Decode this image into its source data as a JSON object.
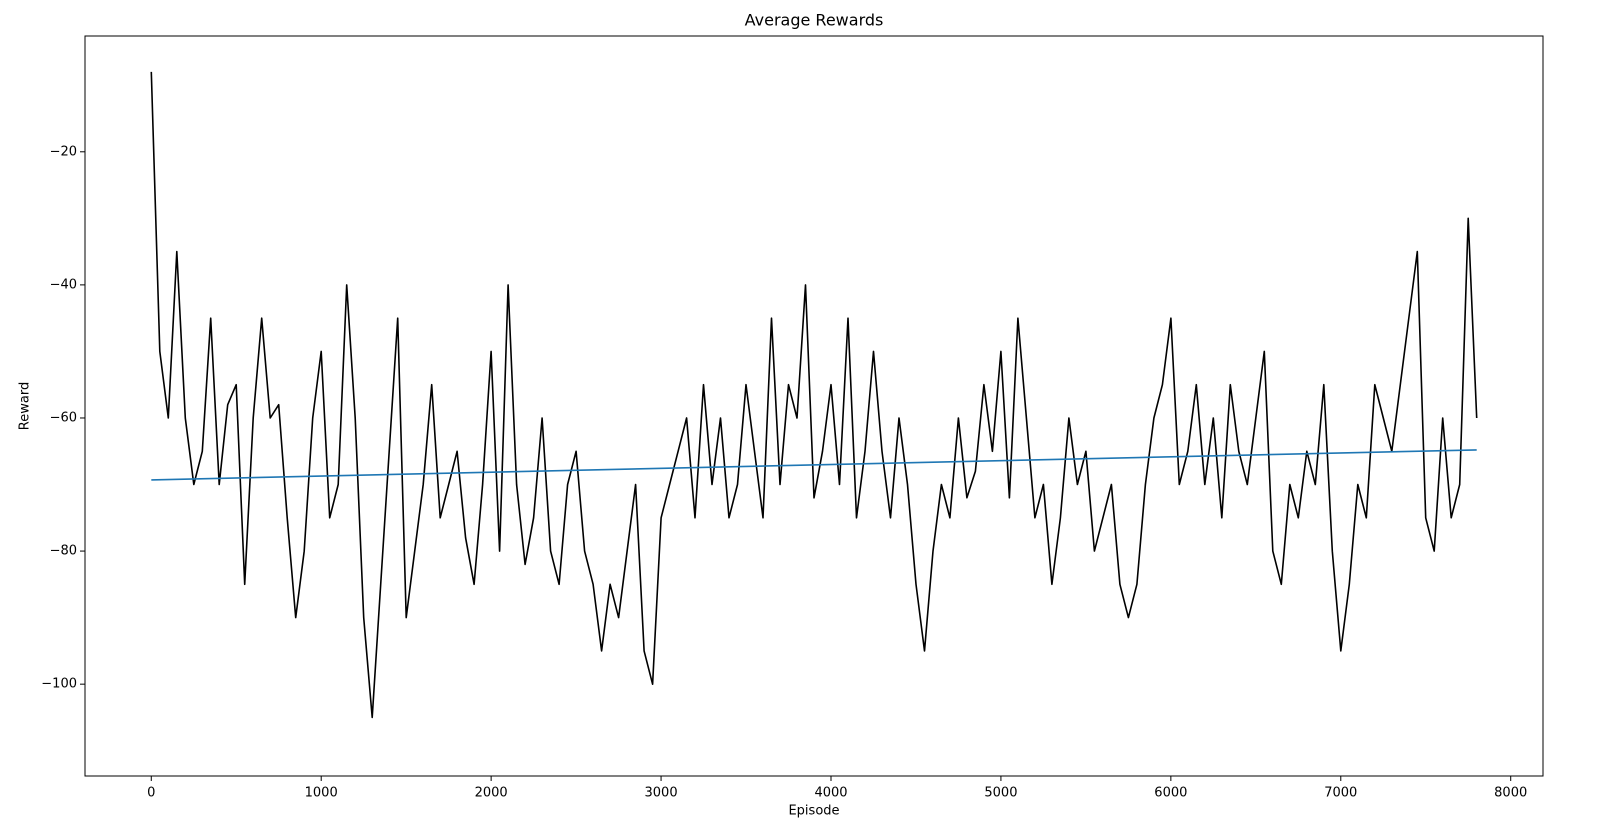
{
  "chart_data": {
    "type": "line",
    "title": "Average Rewards",
    "x_label": "Episode",
    "y_label": "Reward",
    "xlim": [
      -390,
      8190
    ],
    "ylim": [
      -113.8,
      -2.6
    ],
    "xticks": [
      0,
      1000,
      2000,
      3000,
      4000,
      5000,
      6000,
      7000,
      8000
    ],
    "yticks": [
      {
        "value": -100,
        "label": "−100"
      },
      {
        "value": -80,
        "label": "−80"
      },
      {
        "value": -60,
        "label": "−60"
      },
      {
        "value": -40,
        "label": "−40"
      },
      {
        "value": -20,
        "label": "−20"
      }
    ],
    "grid": false,
    "series": [
      {
        "color": "#000000",
        "x": [
          0,
          50,
          100,
          150,
          200,
          250,
          300,
          350,
          400,
          450,
          500,
          550,
          600,
          650,
          700,
          750,
          800,
          850,
          900,
          950,
          1000,
          1050,
          1100,
          1150,
          1200,
          1250,
          1300,
          1350,
          1400,
          1450,
          1500,
          1550,
          1600,
          1650,
          1700,
          1750,
          1800,
          1850,
          1900,
          1950,
          2000,
          2050,
          2100,
          2150,
          2200,
          2250,
          2300,
          2350,
          2400,
          2450,
          2500,
          2550,
          2600,
          2650,
          2700,
          2750,
          2800,
          2850,
          2900,
          2950,
          3000,
          3050,
          3100,
          3150,
          3200,
          3250,
          3300,
          3350,
          3400,
          3450,
          3500,
          3550,
          3600,
          3650,
          3700,
          3750,
          3800,
          3850,
          3900,
          3950,
          4000,
          4050,
          4100,
          4150,
          4200,
          4250,
          4300,
          4350,
          4400,
          4450,
          4500,
          4550,
          4600,
          4650,
          4700,
          4750,
          4800,
          4850,
          4900,
          4950,
          5000,
          5050,
          5100,
          5150,
          5200,
          5250,
          5300,
          5350,
          5400,
          5450,
          5500,
          5550,
          5600,
          5650,
          5700,
          5750,
          5800,
          5850,
          5900,
          5950,
          6000,
          6050,
          6100,
          6150,
          6200,
          6250,
          6300,
          6350,
          6400,
          6450,
          6500,
          6550,
          6600,
          6650,
          6700,
          6750,
          6800,
          6850,
          6900,
          6950,
          7000,
          7050,
          7100,
          7150,
          7200,
          7250,
          7300,
          7350,
          7400,
          7450,
          7500,
          7550,
          7600,
          7650,
          7700,
          7750,
          7800
        ],
        "values": [
          -8,
          -50,
          -60,
          -35,
          -60,
          -70,
          -65,
          -45,
          -70,
          -58,
          -55,
          -85,
          -60,
          -45,
          -60,
          -58,
          -75,
          -90,
          -80,
          -60,
          -50,
          -75,
          -70,
          -40,
          -60,
          -90,
          -105,
          -85,
          -65,
          -45,
          -90,
          -80,
          -70,
          -55,
          -75,
          -70,
          -65,
          -78,
          -85,
          -70,
          -50,
          -80,
          -40,
          -70,
          -82,
          -75,
          -60,
          -80,
          -85,
          -70,
          -65,
          -80,
          -85,
          -95,
          -85,
          -90,
          -80,
          -70,
          -95,
          -100,
          -75,
          -70,
          -65,
          -60,
          -75,
          -55,
          -70,
          -60,
          -75,
          -70,
          -55,
          -65,
          -75,
          -45,
          -70,
          -55,
          -60,
          -40,
          -72,
          -65,
          -55,
          -70,
          -45,
          -75,
          -65,
          -50,
          -65,
          -75,
          -60,
          -70,
          -85,
          -95,
          -80,
          -70,
          -75,
          -60,
          -72,
          -68,
          -55,
          -65,
          -50,
          -72,
          -45,
          -60,
          -75,
          -70,
          -85,
          -75,
          -60,
          -70,
          -65,
          -80,
          -75,
          -70,
          -85,
          -90,
          -85,
          -70,
          -60,
          -55,
          -45,
          -70,
          -65,
          -55,
          -70,
          -60,
          -75,
          -55,
          -65,
          -70,
          -60,
          -50,
          -80,
          -85,
          -70,
          -75,
          -65,
          -70,
          -55,
          -80,
          -95,
          -85,
          -70,
          -75,
          -55,
          -60,
          -65,
          -55,
          -45,
          -35,
          -75,
          -80,
          -60,
          -75,
          -70,
          -30,
          -60
        ]
      },
      {
        "color": "#1f77b4",
        "x": [
          0,
          7800
        ],
        "values": [
          -69.3,
          -64.8
        ]
      }
    ]
  }
}
